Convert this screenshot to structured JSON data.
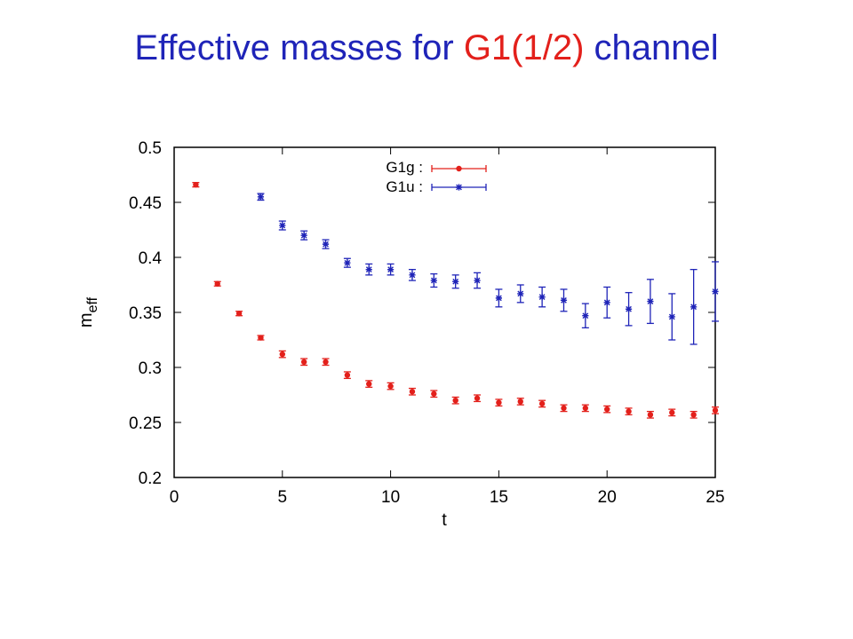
{
  "slide": {
    "title_prefix": "Effective masses for ",
    "title_highlight": "G1(1/2)",
    "title_suffix": " channel",
    "title_color": "#1f24b8",
    "highlight_color": "#e3201b"
  },
  "chart_data": {
    "type": "scatter",
    "title": "",
    "xlabel": "t",
    "ylabel_main": "m",
    "ylabel_sub": "eff",
    "xlim": [
      0,
      25
    ],
    "ylim": [
      0.2,
      0.5
    ],
    "xticks": [
      0,
      5,
      10,
      15,
      20,
      25
    ],
    "yticks": [
      0.2,
      0.25,
      0.3,
      0.35,
      0.4,
      0.45,
      0.5
    ],
    "xtick_labels": [
      "0",
      "5",
      "10",
      "15",
      "20",
      "25"
    ],
    "ytick_labels": [
      "0.2",
      "0.25",
      "0.3",
      "0.35",
      "0.4",
      "0.45",
      "0.5"
    ],
    "grid": false,
    "legend_position": "top-center",
    "series": [
      {
        "name": "G1g :",
        "color": "#e3201b",
        "marker": "dot",
        "points": [
          {
            "x": 1,
            "y": 0.466,
            "err": 0.002
          },
          {
            "x": 2,
            "y": 0.376,
            "err": 0.002
          },
          {
            "x": 3,
            "y": 0.349,
            "err": 0.002
          },
          {
            "x": 4,
            "y": 0.327,
            "err": 0.002
          },
          {
            "x": 5,
            "y": 0.312,
            "err": 0.003
          },
          {
            "x": 6,
            "y": 0.305,
            "err": 0.003
          },
          {
            "x": 7,
            "y": 0.305,
            "err": 0.003
          },
          {
            "x": 8,
            "y": 0.293,
            "err": 0.003
          },
          {
            "x": 9,
            "y": 0.285,
            "err": 0.003
          },
          {
            "x": 10,
            "y": 0.283,
            "err": 0.003
          },
          {
            "x": 11,
            "y": 0.278,
            "err": 0.003
          },
          {
            "x": 12,
            "y": 0.276,
            "err": 0.003
          },
          {
            "x": 13,
            "y": 0.27,
            "err": 0.003
          },
          {
            "x": 14,
            "y": 0.272,
            "err": 0.003
          },
          {
            "x": 15,
            "y": 0.268,
            "err": 0.003
          },
          {
            "x": 16,
            "y": 0.269,
            "err": 0.003
          },
          {
            "x": 17,
            "y": 0.267,
            "err": 0.003
          },
          {
            "x": 18,
            "y": 0.263,
            "err": 0.003
          },
          {
            "x": 19,
            "y": 0.263,
            "err": 0.003
          },
          {
            "x": 20,
            "y": 0.262,
            "err": 0.003
          },
          {
            "x": 21,
            "y": 0.26,
            "err": 0.003
          },
          {
            "x": 22,
            "y": 0.257,
            "err": 0.003
          },
          {
            "x": 23,
            "y": 0.259,
            "err": 0.003
          },
          {
            "x": 24,
            "y": 0.257,
            "err": 0.003
          },
          {
            "x": 25,
            "y": 0.261,
            "err": 0.003
          }
        ]
      },
      {
        "name": "G1u :",
        "color": "#1f24b8",
        "marker": "star",
        "points": [
          {
            "x": 4,
            "y": 0.455,
            "err": 0.003
          },
          {
            "x": 5,
            "y": 0.429,
            "err": 0.004
          },
          {
            "x": 6,
            "y": 0.42,
            "err": 0.004
          },
          {
            "x": 7,
            "y": 0.412,
            "err": 0.004
          },
          {
            "x": 8,
            "y": 0.395,
            "err": 0.004
          },
          {
            "x": 9,
            "y": 0.389,
            "err": 0.005
          },
          {
            "x": 10,
            "y": 0.389,
            "err": 0.005
          },
          {
            "x": 11,
            "y": 0.384,
            "err": 0.005
          },
          {
            "x": 12,
            "y": 0.379,
            "err": 0.006
          },
          {
            "x": 13,
            "y": 0.378,
            "err": 0.006
          },
          {
            "x": 14,
            "y": 0.379,
            "err": 0.007
          },
          {
            "x": 15,
            "y": 0.363,
            "err": 0.008
          },
          {
            "x": 16,
            "y": 0.367,
            "err": 0.008
          },
          {
            "x": 17,
            "y": 0.364,
            "err": 0.009
          },
          {
            "x": 18,
            "y": 0.361,
            "err": 0.01
          },
          {
            "x": 19,
            "y": 0.347,
            "err": 0.011
          },
          {
            "x": 20,
            "y": 0.359,
            "err": 0.014
          },
          {
            "x": 21,
            "y": 0.353,
            "err": 0.015
          },
          {
            "x": 22,
            "y": 0.36,
            "err": 0.02
          },
          {
            "x": 23,
            "y": 0.346,
            "err": 0.021
          },
          {
            "x": 24,
            "y": 0.355,
            "err": 0.034
          },
          {
            "x": 25,
            "y": 0.369,
            "err": 0.027
          }
        ]
      }
    ]
  }
}
